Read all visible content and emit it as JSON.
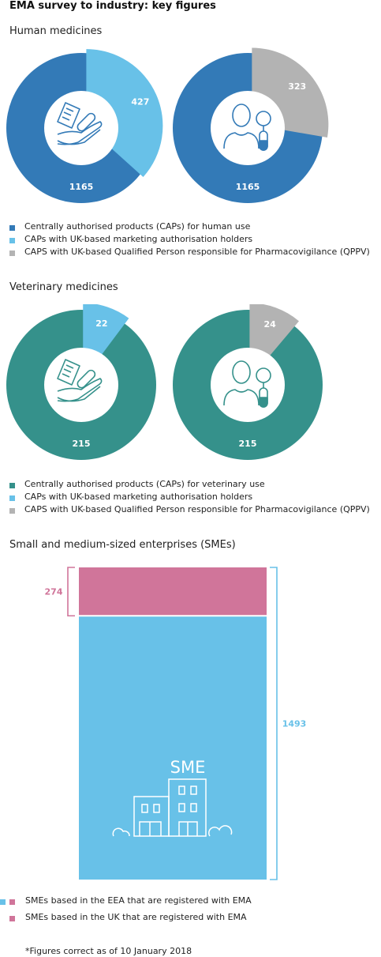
{
  "title": "EMA survey to industry: key figures",
  "colors": {
    "human_total": "#337ab7",
    "vet_total": "#35918b",
    "uk_mah": "#68c1e8",
    "qppv": "#b3b3b3",
    "sme_uk": "#d0759a",
    "sme_eea": "#68c1e8"
  },
  "icons": {
    "mah": "hand-holding-pill-and-document-icon",
    "qppv": "person-with-magnifier-and-pill-icon",
    "sme": "office-buildings-icon"
  },
  "human": {
    "heading": "Human medicines",
    "legend": [
      "Centrally authorised products (CAPs) for human use",
      "CAPs with UK-based marketing authorisation holders",
      "CAPS with UK-based Qualified Person responsible for Pharmacovigilance (QPPV)"
    ]
  },
  "veterinary": {
    "heading": "Veterinary medicines",
    "legend": [
      "Centrally authorised products (CAPs) for veterinary use",
      "CAPs with UK-based marketing authorisation holders",
      "CAPS with UK-based Qualified Person responsible for Pharmacovigilance (QPPV)"
    ]
  },
  "sme": {
    "heading": "Small and medium-sized enterprises (SMEs)",
    "icon_text": "SME",
    "legend": [
      "SMEs based in the EEA that are registered with EMA",
      "SMEs based in the UK that are registered with EMA"
    ]
  },
  "footnote": "*Figures correct as of 10 January 2018",
  "chart_data": [
    {
      "type": "pie",
      "section": "Human medicines",
      "total_label": "1165",
      "total": 1165,
      "slices": [
        {
          "label": "427",
          "value": 427,
          "color": "#68c1e8"
        },
        {
          "label": "1165",
          "value": 1165,
          "color": "#337ab7"
        }
      ]
    },
    {
      "type": "pie",
      "section": "Human medicines",
      "total_label": "1165",
      "total": 1165,
      "slices": [
        {
          "label": "323",
          "value": 323,
          "color": "#b3b3b3"
        },
        {
          "label": "1165",
          "value": 1165,
          "color": "#337ab7"
        }
      ]
    },
    {
      "type": "pie",
      "section": "Veterinary medicines",
      "total_label": "215",
      "total": 215,
      "slices": [
        {
          "label": "22",
          "value": 22,
          "color": "#68c1e8"
        },
        {
          "label": "215",
          "value": 215,
          "color": "#35918b"
        }
      ]
    },
    {
      "type": "pie",
      "section": "Veterinary medicines",
      "total_label": "215",
      "total": 215,
      "slices": [
        {
          "label": "24",
          "value": 24,
          "color": "#b3b3b3"
        },
        {
          "label": "215",
          "value": 215,
          "color": "#35918b"
        }
      ]
    },
    {
      "type": "bar",
      "section": "Small and medium-sized enterprises (SMEs)",
      "stacked": true,
      "segments": [
        {
          "label": "274",
          "value": 274,
          "color": "#d0759a"
        },
        {
          "label": "1493",
          "value": 1493,
          "color": "#68c1e8"
        }
      ]
    }
  ]
}
